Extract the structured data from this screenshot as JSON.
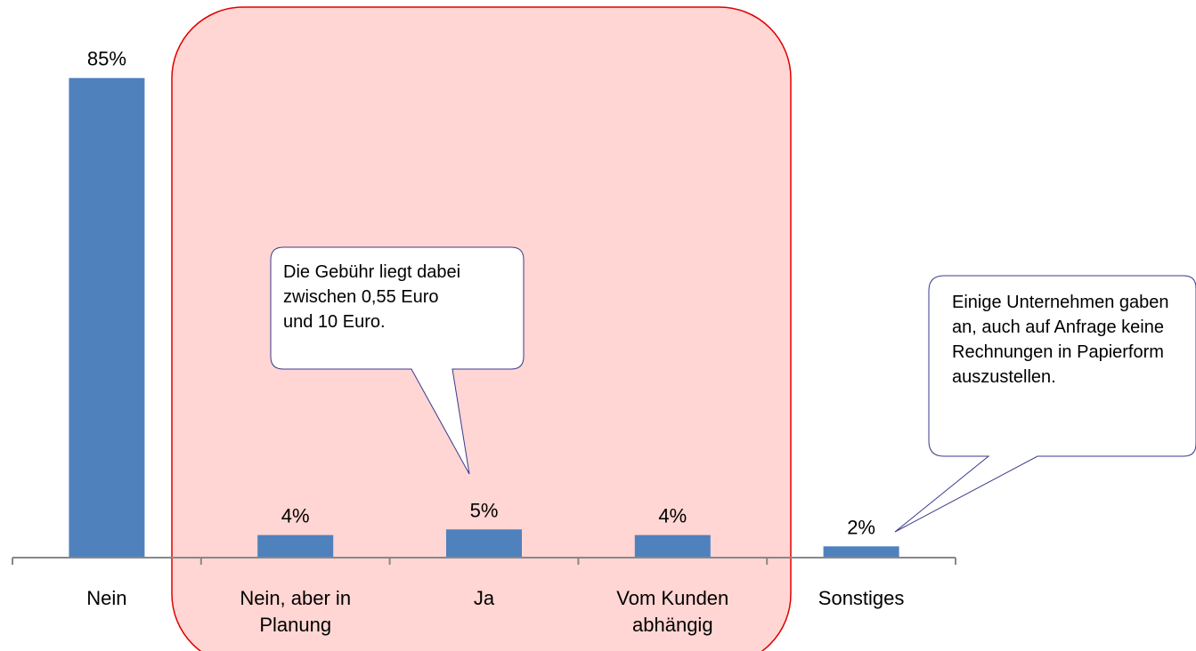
{
  "chart_data": {
    "type": "bar",
    "categories": [
      "Nein",
      "Nein, aber in Planung",
      "Ja",
      "Vom Kunden abhängig",
      "Sonstiges"
    ],
    "values": [
      85,
      4,
      5,
      4,
      2
    ],
    "value_labels": [
      "85%",
      "4%",
      "5%",
      "4%",
      "2%"
    ],
    "color": "#4f81bd",
    "ylim": [
      0,
      90
    ],
    "annotations": [
      "Die Gebühr liegt dabei zwischen 0,55 Euro und 10 Euro.",
      "Einige Unternehmen gaben an, auch auf Anfrage keine Rechnungen in Papierform auszustellen."
    ]
  }
}
